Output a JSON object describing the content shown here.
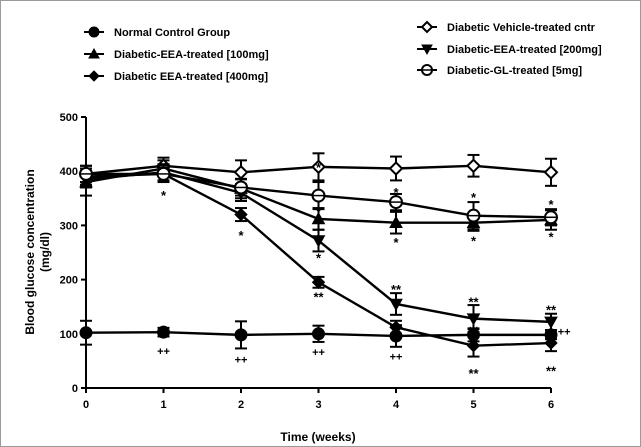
{
  "chart_data": {
    "type": "line",
    "xlabel": "Time (weeks)",
    "ylabel": "Blood glucose concentration (mg/dl)",
    "ylabel_lines": [
      "Blood glucose concentration",
      "(mg/dl)"
    ],
    "xlim": [
      0,
      6
    ],
    "ylim": [
      0,
      500
    ],
    "x": [
      0,
      1,
      2,
      3,
      4,
      5,
      6
    ],
    "x_ticks": [
      "0",
      "1",
      "2",
      "3",
      "4",
      "5",
      "6"
    ],
    "y_ticks": [
      "0",
      "100",
      "200",
      "300",
      "400",
      "500"
    ],
    "grid": false,
    "legend_placement": "top",
    "series": [
      {
        "name": "Normal Control Group",
        "marker": "circle",
        "values": [
          102,
          103,
          98,
          100,
          96,
          98,
          98
        ],
        "errors": [
          22,
          8,
          25,
          15,
          20,
          12,
          8
        ]
      },
      {
        "name": "Diabetic-EEA-treated [100mg]",
        "marker": "triangle-up",
        "values": [
          380,
          405,
          368,
          312,
          305,
          305,
          310
        ],
        "errors": [
          25,
          15,
          18,
          20,
          20,
          15,
          18
        ]
      },
      {
        "name": "Diabetic EEA-treated [400mg]",
        "marker": "diamond",
        "values": [
          390,
          395,
          320,
          195,
          112,
          78,
          83
        ],
        "errors": [
          15,
          12,
          12,
          10,
          12,
          20,
          15
        ]
      },
      {
        "name": "Diabetic Vehicle-treated cntr",
        "marker": "diamond-open",
        "values": [
          395,
          410,
          398,
          408,
          405,
          410,
          398
        ],
        "errors": [
          15,
          15,
          22,
          25,
          22,
          20,
          25
        ]
      },
      {
        "name": "Diabetic-EEA-treated [200mg]",
        "marker": "triangle-down",
        "values": [
          385,
          398,
          360,
          272,
          155,
          128,
          122
        ],
        "errors": [
          15,
          15,
          15,
          20,
          20,
          25,
          15
        ]
      },
      {
        "name": "Diabetic-GL-treated [5mg]",
        "marker": "circle-open",
        "values": [
          395,
          395,
          370,
          355,
          343,
          318,
          315
        ],
        "errors": [
          15,
          15,
          15,
          25,
          15,
          25,
          15
        ]
      }
    ],
    "annotations": [
      {
        "text": "*",
        "x": 1,
        "y": 362
      },
      {
        "text": "*",
        "x": 2,
        "y": 288
      },
      {
        "text": "*",
        "x": 3,
        "y": 413
      },
      {
        "text": "*",
        "x": 3,
        "y": 333
      },
      {
        "text": "*",
        "x": 3,
        "y": 246
      },
      {
        "text": "**",
        "x": 3,
        "y": 174
      },
      {
        "text": "++",
        "x": 1,
        "y": 68
      },
      {
        "text": "++",
        "x": 2,
        "y": 53
      },
      {
        "text": "++",
        "x": 3,
        "y": 66
      },
      {
        "text": "*",
        "x": 4,
        "y": 367
      },
      {
        "text": "*",
        "x": 4,
        "y": 275
      },
      {
        "text": "**",
        "x": 4,
        "y": 188
      },
      {
        "text": "++",
        "x": 4,
        "y": 58
      },
      {
        "text": "*",
        "x": 5,
        "y": 358
      },
      {
        "text": "*",
        "x": 5,
        "y": 278
      },
      {
        "text": "**",
        "x": 5,
        "y": 165
      },
      {
        "text": "++",
        "x": 5,
        "y": 108
      },
      {
        "text": "**",
        "x": 5,
        "y": 33
      },
      {
        "text": "*",
        "x": 6,
        "y": 345
      },
      {
        "text": "*",
        "x": 6,
        "y": 285
      },
      {
        "text": "**",
        "x": 6,
        "y": 150
      },
      {
        "text": "**",
        "x": 6,
        "y": 38
      },
      {
        "text": "++",
        "x": 6.17,
        "y": 104
      }
    ]
  }
}
